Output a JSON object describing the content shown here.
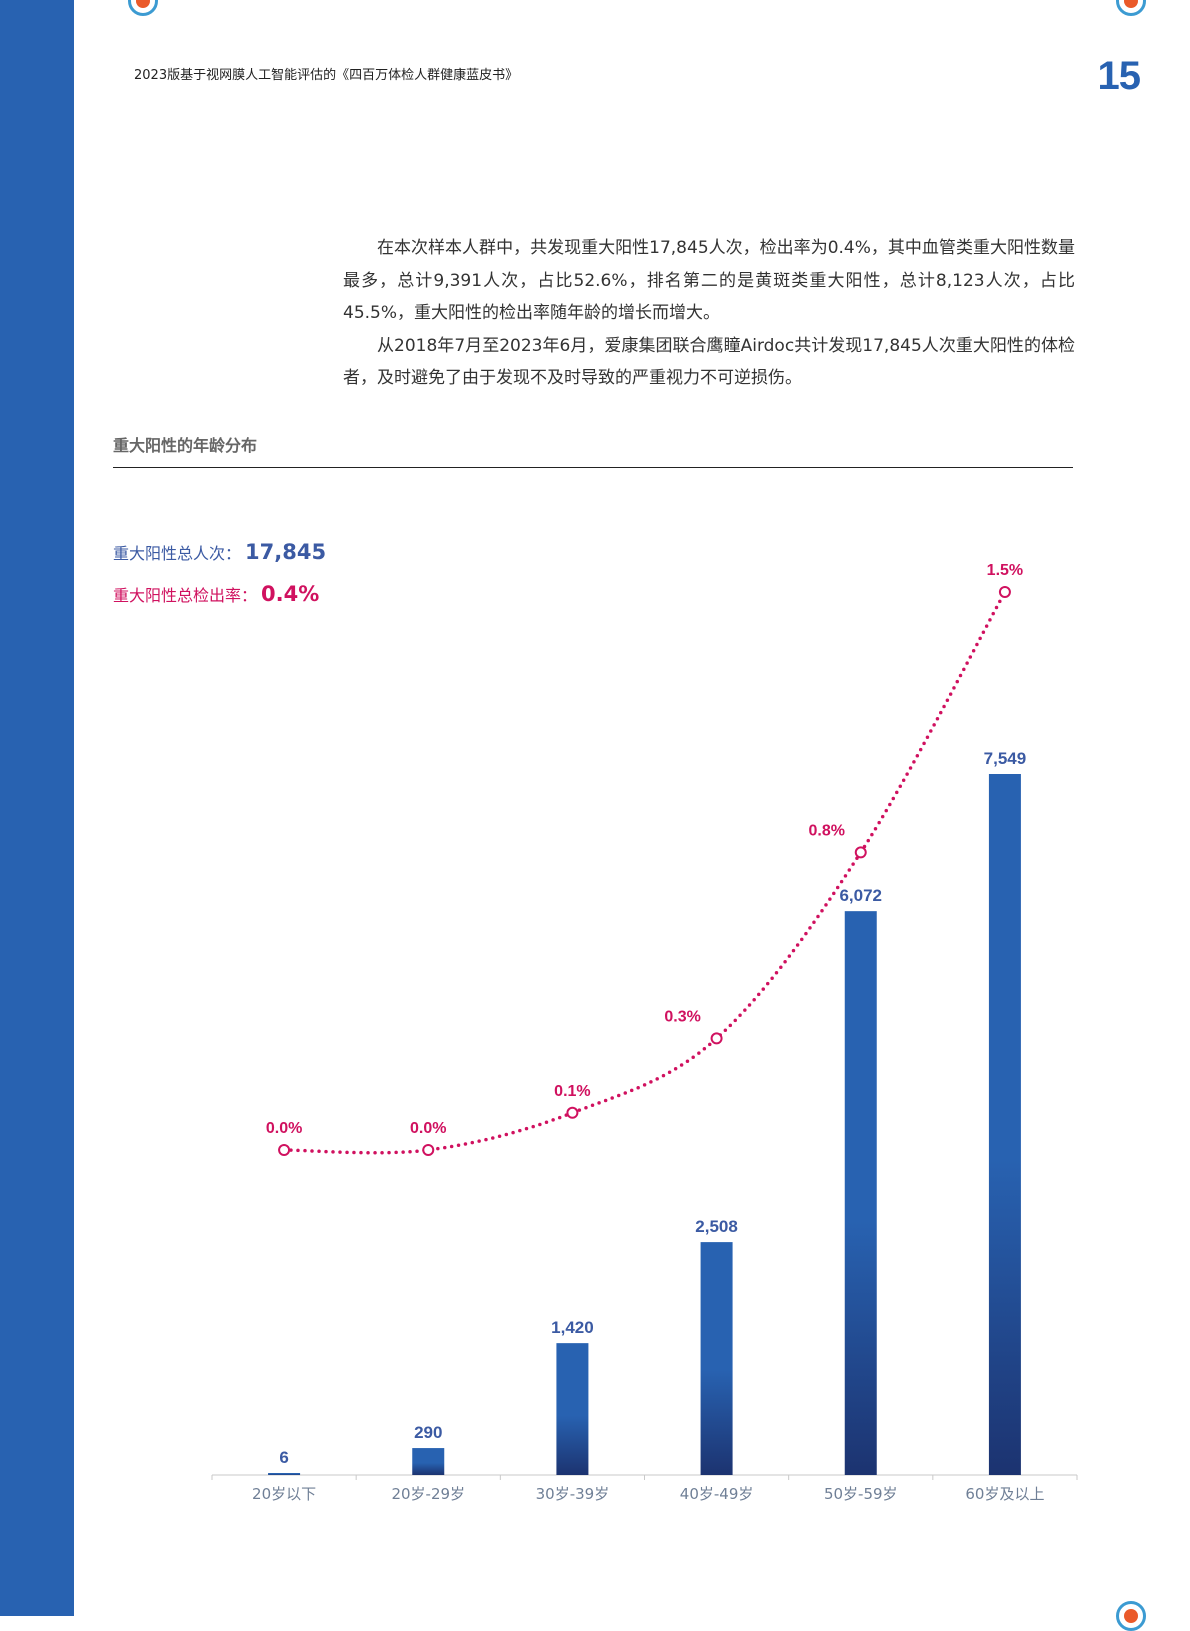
{
  "header": {
    "title": "2023版基于视网膜人工智能评估的《四百万体检人群健康蓝皮书》",
    "page_number": "15"
  },
  "body": {
    "paragraphs": [
      "在本次样本人群中，共发现重大阳性17,845人次，检出率为0.4%，其中血管类重大阳性数量最多，总计9,391人次，占比52.6%，排名第二的是黄斑类重大阳性，总计8,123人次，占比45.5%，重大阳性的检出率随年龄的增长而增大。",
      "从2018年7月至2023年6月，爱康集团联合鹰瞳Airdoc共计发现17,845人次重大阳性的体检者，及时避免了由于发现不及时导致的严重视力不可逆损伤。"
    ]
  },
  "section": {
    "title": "重大阳性的年龄分布"
  },
  "summary": {
    "total_label": "重大阳性总人次：",
    "total_value": "17,845",
    "rate_label": "重大阳性总检出率：",
    "rate_value": "0.4%"
  },
  "colors": {
    "bar": "#2862b1",
    "bar_dark": "#1c3370",
    "line": "#d0115f",
    "accent": "#2862b1"
  },
  "chart_data": {
    "type": "bar",
    "categories": [
      "20岁以下",
      "20岁-29岁",
      "30岁-39岁",
      "40岁-49岁",
      "50岁-59岁",
      "60岁及以上"
    ],
    "series": [
      {
        "type": "bar",
        "values": [
          6,
          290,
          1420,
          2508,
          6072,
          7549
        ],
        "labels": [
          "6",
          "290",
          "1,420",
          "2,508",
          "6,072",
          "7,549"
        ]
      },
      {
        "type": "line",
        "style": "dotted",
        "values": [
          0.0,
          0.0,
          0.1,
          0.3,
          0.8,
          1.5
        ],
        "labels": [
          "0.0%",
          "0.0%",
          "0.1%",
          "0.3%",
          "0.8%",
          "1.5%"
        ]
      }
    ],
    "title": "",
    "xlabel": "",
    "ylabel": "",
    "grid": false,
    "legend": "none"
  }
}
